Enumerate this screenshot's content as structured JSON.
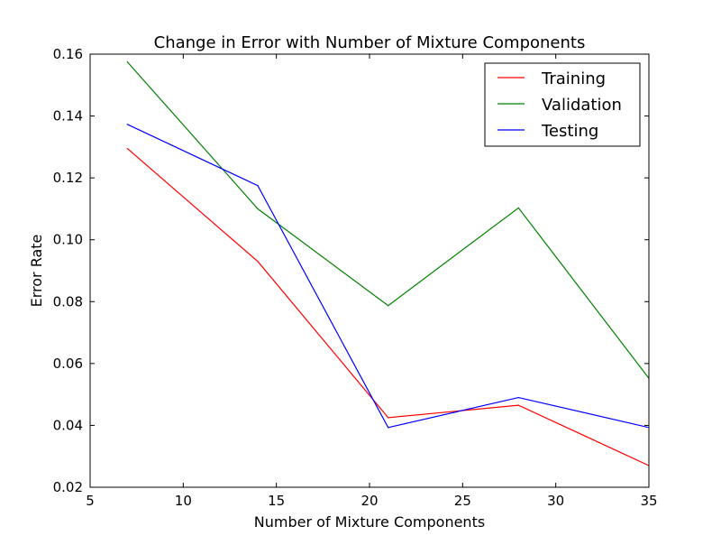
{
  "chart_data": {
    "type": "line",
    "title": "Change in Error with Number of Mixture Components",
    "xlabel": "Number of Mixture Components",
    "ylabel": "Error Rate",
    "xlim": [
      5,
      35
    ],
    "ylim": [
      0.02,
      0.16
    ],
    "xticks": [
      5,
      10,
      15,
      20,
      25,
      30,
      35
    ],
    "yticks": [
      0.02,
      0.04,
      0.06,
      0.08,
      0.1,
      0.12,
      0.14,
      0.16
    ],
    "xtick_labels": [
      "5",
      "10",
      "15",
      "20",
      "25",
      "30",
      "35"
    ],
    "ytick_labels": [
      "0.02",
      "0.04",
      "0.06",
      "0.08",
      "0.10",
      "0.12",
      "0.14",
      "0.16"
    ],
    "grid": false,
    "legend_position": "top-right",
    "x": [
      7,
      14,
      21,
      28,
      35
    ],
    "series": [
      {
        "name": "Training",
        "color": "#ff0000",
        "values": [
          0.1295,
          0.093,
          0.0425,
          0.0465,
          0.027
        ]
      },
      {
        "name": "Validation",
        "color": "#008000",
        "values": [
          0.1575,
          0.11,
          0.0787,
          0.1103,
          0.0552
        ]
      },
      {
        "name": "Testing",
        "color": "#0000ff",
        "values": [
          0.1373,
          0.1175,
          0.0393,
          0.049,
          0.0393
        ]
      }
    ]
  }
}
